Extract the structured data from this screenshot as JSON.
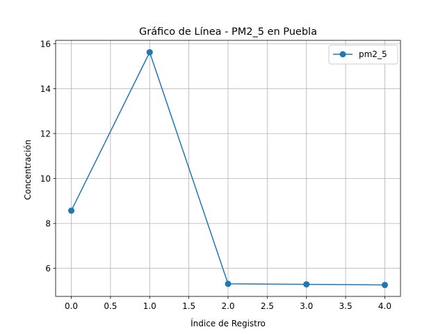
{
  "chart_data": {
    "type": "line",
    "title": "Gráfico de Línea - PM2_5 en Puebla",
    "xlabel": "Índice de Registro",
    "ylabel": "Concentración",
    "x": [
      0,
      1,
      2,
      3,
      4
    ],
    "series": [
      {
        "name": "pm2_5",
        "values": [
          8.57,
          15.62,
          5.31,
          5.29,
          5.26
        ],
        "color": "#1f77b4",
        "marker": "circle"
      }
    ],
    "xlim": [
      -0.2,
      4.2
    ],
    "ylim": [
      4.75,
      16.15
    ],
    "x_ticks": [
      0.0,
      0.5,
      1.0,
      1.5,
      2.0,
      2.5,
      3.0,
      3.5,
      4.0
    ],
    "x_tick_labels": [
      "0.0",
      "0.5",
      "1.0",
      "1.5",
      "2.0",
      "2.5",
      "3.0",
      "3.5",
      "4.0"
    ],
    "y_ticks": [
      6,
      8,
      10,
      12,
      14,
      16
    ],
    "y_tick_labels": [
      "6",
      "8",
      "10",
      "12",
      "14",
      "16"
    ],
    "grid": true,
    "legend_position": "top-right"
  }
}
